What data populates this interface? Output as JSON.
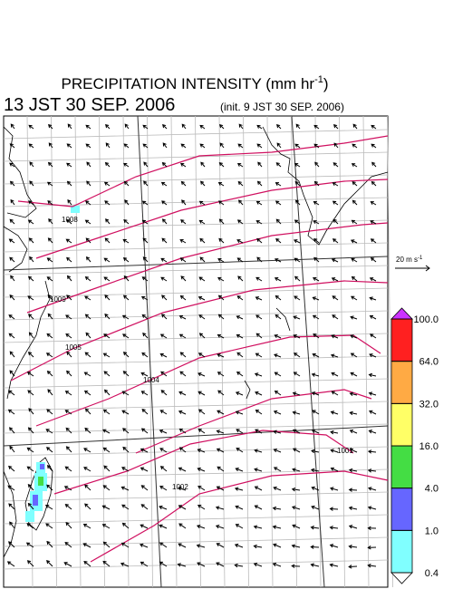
{
  "header": {
    "title": "PRECIPITATION INTENSITY (mm hr",
    "title_exponent": "-1",
    "title_end": ")",
    "valid_time": "13 JST 30 SEP. 2006",
    "init_time": "(init. 9 JST 30 SEP. 2006)"
  },
  "wind_scale": {
    "label": "20 m s",
    "exponent": "-1"
  },
  "isobar_labels": [
    "1008",
    "1009",
    "1005",
    "1004",
    "1002",
    "1001"
  ],
  "colorbar": {
    "levels": [
      {
        "value": 0.4,
        "label": "0.4"
      },
      {
        "value": 1,
        "label": "1.0"
      },
      {
        "value": 4,
        "label": "4.0"
      },
      {
        "value": 16,
        "label": "16.0"
      },
      {
        "value": 32,
        "label": "32.0"
      },
      {
        "value": 64,
        "label": "64.0"
      },
      {
        "value": 100,
        "label": "100.0"
      }
    ],
    "colors": [
      "#80ffff",
      "#6666ff",
      "#44dd44",
      "#ffff66",
      "#ffaa44",
      "#ff2020"
    ],
    "over_color": "#cc33ff",
    "under_color": "#ffffff"
  }
}
